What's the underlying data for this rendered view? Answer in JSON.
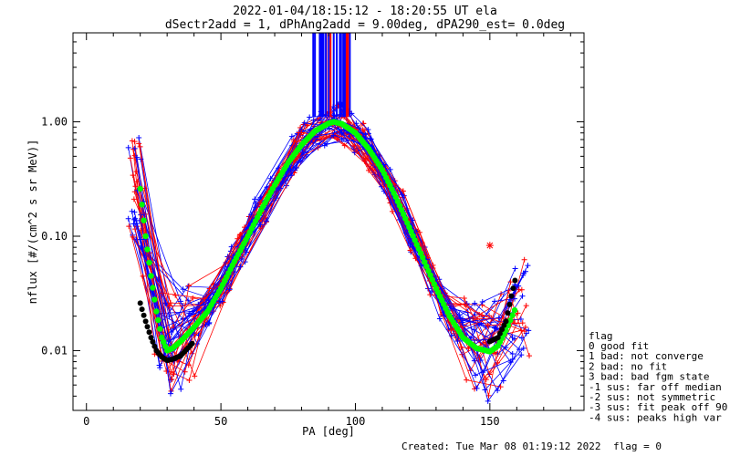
{
  "chart_data": {
    "type": "scatter",
    "title": "2022-01-04/18:15:12 - 18:20:55 UT ela",
    "subtitle": "dSectr2add = 1, dPhAng2add = 9.00deg, dPA290_est=   0.0deg",
    "xlabel": "PA [deg]",
    "ylabel": "nflux [#/(cm^2 s sr MeV)]",
    "xlim": [
      -5,
      185
    ],
    "ylim": [
      0.003,
      6.0
    ],
    "yscale": "log",
    "x_ticks": [
      "0",
      "50",
      "100",
      "150"
    ],
    "y_ticks": [
      "0.01",
      "0.10",
      "1.00"
    ],
    "series": [
      {
        "color": "#00ff00",
        "x": [
          20,
          22,
          24,
          26,
          28,
          30,
          32,
          35,
          40,
          45,
          50,
          55,
          60,
          65,
          70,
          75,
          80,
          85,
          90,
          92,
          95,
          100,
          105,
          110,
          115,
          120,
          125,
          130,
          135,
          140,
          145,
          150,
          153,
          156,
          160
        ],
        "values": [
          0.26,
          0.1,
          0.045,
          0.022,
          0.013,
          0.01,
          0.0105,
          0.012,
          0.016,
          0.022,
          0.035,
          0.06,
          0.1,
          0.17,
          0.28,
          0.44,
          0.63,
          0.83,
          0.97,
          1.0,
          0.96,
          0.8,
          0.58,
          0.38,
          0.22,
          0.12,
          0.065,
          0.035,
          0.02,
          0.013,
          0.0105,
          0.0098,
          0.011,
          0.015,
          0.025
        ]
      },
      {
        "color": "#000000",
        "x": [
          20,
          22,
          24,
          26,
          28,
          30,
          32,
          35,
          40,
          150,
          153,
          156,
          158,
          160
        ],
        "values": [
          0.026,
          0.018,
          0.013,
          0.01,
          0.0088,
          0.0082,
          0.0084,
          0.009,
          0.012,
          0.012,
          0.013,
          0.018,
          0.03,
          0.048
        ]
      }
    ],
    "legend": {
      "title": "flag",
      "entries": [
        " 0 good fit",
        " 1 bad: not converge",
        " 2 bad: no fit",
        " 3 bad: bad fgm state",
        "-1 sus: far off median",
        "-2 sus: not symmetric",
        "-3 sus: fit peak off 90",
        "-4 sus: peaks high var"
      ]
    },
    "grid": false
  },
  "footer": {
    "created": "Created: Tue Mar 08 01:19:12 2022",
    "flag": "flag = 0"
  }
}
